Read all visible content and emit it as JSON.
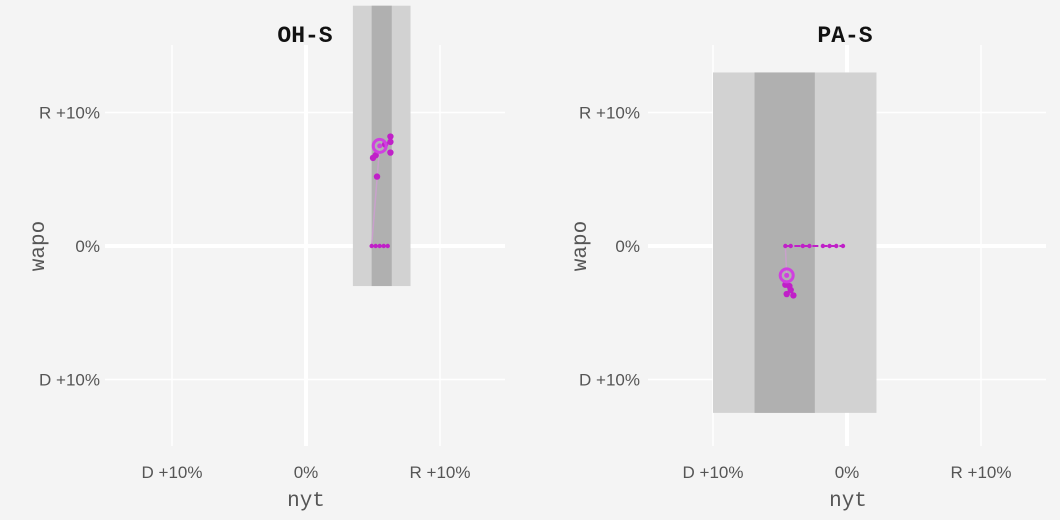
{
  "chart_data": [
    {
      "type": "scatter",
      "title": "OH-S",
      "xlabel": "nyt",
      "ylabel": "wapo",
      "xlim": [
        -14,
        15
      ],
      "ylim": [
        -15,
        15
      ],
      "x_ticks": [
        {
          "value": -10,
          "label": "D +10%"
        },
        {
          "value": 0,
          "label": "0%"
        },
        {
          "value": 10,
          "label": "R +10%"
        }
      ],
      "y_ticks": [
        {
          "value": 10,
          "label": "R +10%"
        },
        {
          "value": 0,
          "label": "0%"
        },
        {
          "value": -10,
          "label": "D +10%"
        }
      ],
      "bands": [
        {
          "kind": "outer",
          "x_range": [
            3.5,
            7.8
          ],
          "y_range": [
            -3.0,
            18
          ]
        },
        {
          "kind": "inner",
          "x_range": [
            4.9,
            6.4
          ],
          "y_range": [
            -3.0,
            18
          ]
        }
      ],
      "trail": [
        {
          "x": 4.9,
          "y": 0
        },
        {
          "x": 5.2,
          "y": 0
        },
        {
          "x": 5.5,
          "y": 0
        },
        {
          "x": 5.8,
          "y": 0
        },
        {
          "x": 6.1,
          "y": 0
        },
        {
          "x": 5.3,
          "y": 5.2
        },
        {
          "x": 5.0,
          "y": 6.6
        },
        {
          "x": 5.2,
          "y": 6.8
        },
        {
          "x": 6.3,
          "y": 7.0
        },
        {
          "x": 6.3,
          "y": 7.8
        },
        {
          "x": 6.3,
          "y": 8.2
        },
        {
          "x": 5.9,
          "y": 7.6
        }
      ],
      "current": {
        "x": 5.5,
        "y": 7.5
      },
      "point_color": "#c020c8",
      "current_color": "#d040e0"
    },
    {
      "type": "scatter",
      "title": "PA-S",
      "xlabel": "nyt",
      "ylabel": "wapo",
      "xlim": [
        -14,
        15
      ],
      "ylim": [
        -15,
        15
      ],
      "x_ticks": [
        {
          "value": -10,
          "label": "D +10%"
        },
        {
          "value": 0,
          "label": "0%"
        },
        {
          "value": 10,
          "label": "R +10%"
        }
      ],
      "y_ticks": [
        {
          "value": 10,
          "label": "R +10%"
        },
        {
          "value": 0,
          "label": "0%"
        },
        {
          "value": -10,
          "label": "D +10%"
        }
      ],
      "bands": [
        {
          "kind": "outer",
          "x_range": [
            -10.0,
            2.2
          ],
          "y_range": [
            -12.5,
            13.0
          ]
        },
        {
          "kind": "inner",
          "x_range": [
            -6.9,
            -2.4
          ],
          "y_range": [
            -12.5,
            13.0
          ]
        }
      ],
      "trail": [
        {
          "x": -4.6,
          "y": 0
        },
        {
          "x": -4.2,
          "y": 0
        },
        {
          "x": -3.3,
          "y": 0
        },
        {
          "x": -2.8,
          "y": 0
        },
        {
          "x": -1.8,
          "y": 0
        },
        {
          "x": -1.3,
          "y": 0
        },
        {
          "x": -0.8,
          "y": 0
        },
        {
          "x": -0.3,
          "y": 0
        },
        {
          "x": -4.6,
          "y": -2.9
        },
        {
          "x": -4.3,
          "y": -3.0
        },
        {
          "x": -4.2,
          "y": -3.3
        },
        {
          "x": -4.5,
          "y": -3.6
        },
        {
          "x": -4.0,
          "y": -3.7
        }
      ],
      "current": {
        "x": -4.5,
        "y": -2.2
      },
      "point_color": "#c020c8",
      "current_color": "#d040e0"
    }
  ],
  "colors": {
    "background": "#f4f4f4",
    "grid": "#ffffff",
    "band_outer": "#d2d2d2",
    "band_inner": "#b0b0b0",
    "trail_line": "#c9a0cc"
  }
}
